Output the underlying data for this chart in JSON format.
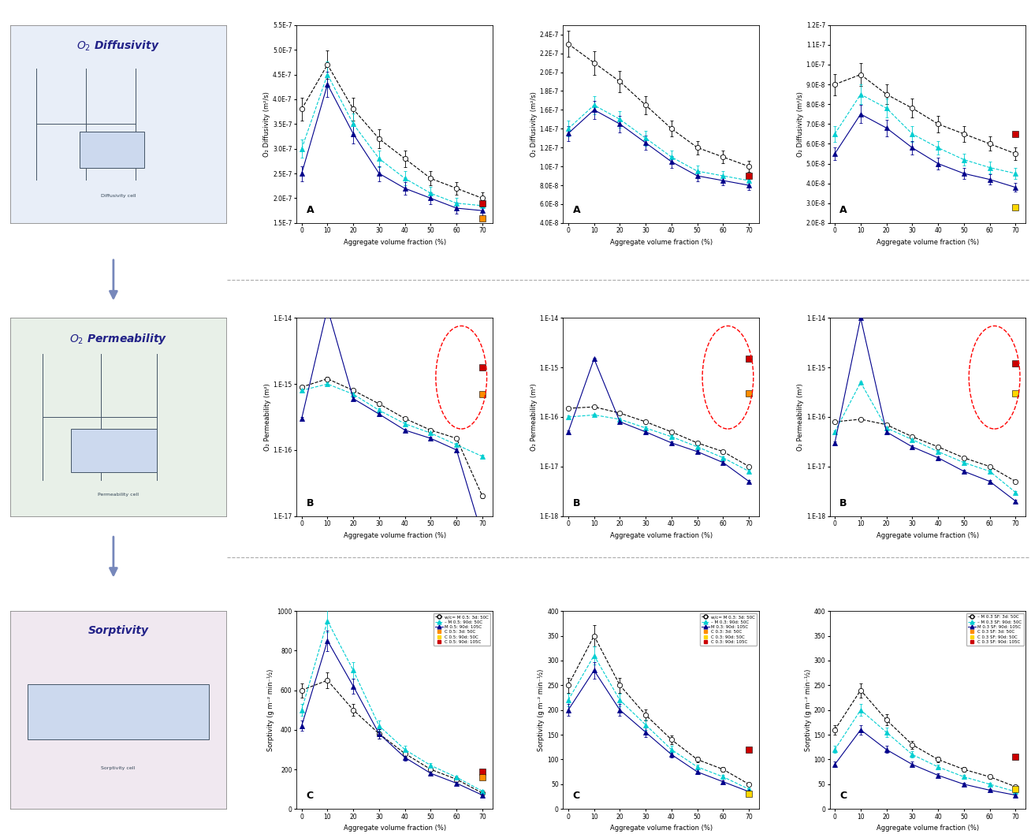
{
  "x_agg": [
    0,
    10,
    20,
    30,
    40,
    50,
    60,
    70
  ],
  "diff_col1": {
    "s1": [
      3.8e-07,
      4.7e-07,
      3.8e-07,
      3.2e-07,
      2.8e-07,
      2.4e-07,
      2.2e-07,
      2e-07
    ],
    "s2": [
      3e-07,
      4.5e-07,
      3.5e-07,
      2.8e-07,
      2.4e-07,
      2.1e-07,
      1.9e-07,
      1.85e-07
    ],
    "s3": [
      2.5e-07,
      4.3e-07,
      3.3e-07,
      2.5e-07,
      2.2e-07,
      2e-07,
      1.8e-07,
      1.75e-07
    ],
    "sq_red": 1.9e-07,
    "sq_orange": 1.6e-07,
    "sq_yellow": null,
    "ylabel": "O₂ Diffusivity (m²/s)",
    "ylim": [
      1.5e-07,
      5.5e-07
    ],
    "yticks": [
      1.5e-07,
      2e-07,
      2.5e-07,
      3e-07,
      3.5e-07,
      4e-07,
      4.5e-07,
      5e-07,
      5.5e-07
    ],
    "label": "A"
  },
  "diff_col2": {
    "s1": [
      2.3e-07,
      2.1e-07,
      1.9e-07,
      1.65e-07,
      1.4e-07,
      1.2e-07,
      1.1e-07,
      1e-07
    ],
    "s2": [
      1.4e-07,
      1.65e-07,
      1.5e-07,
      1.3e-07,
      1.1e-07,
      9.5e-08,
      9e-08,
      8.5e-08
    ],
    "s3": [
      1.35e-07,
      1.6e-07,
      1.45e-07,
      1.25e-07,
      1.05e-07,
      9e-08,
      8.5e-08,
      8e-08
    ],
    "sq_red": 9e-08,
    "sq_orange": null,
    "sq_yellow": null,
    "ylabel": "O₂ Diffusivity (m²/s)",
    "ylim": [
      4e-08,
      2.5e-07
    ],
    "yticks": [
      4e-08,
      6e-08,
      8e-08,
      1e-07,
      1.2e-07,
      1.4e-07,
      1.6e-07,
      1.8e-07,
      2e-07,
      2.2e-07,
      2.4e-07
    ],
    "label": "A"
  },
  "diff_col3": {
    "s1": [
      9e-08,
      9.5e-08,
      8.5e-08,
      7.8e-08,
      7e-08,
      6.5e-08,
      6e-08,
      5.5e-08
    ],
    "s2": [
      6.5e-08,
      8.5e-08,
      7.8e-08,
      6.5e-08,
      5.8e-08,
      5.2e-08,
      4.8e-08,
      4.5e-08
    ],
    "s3": [
      5.5e-08,
      7.5e-08,
      6.8e-08,
      5.8e-08,
      5e-08,
      4.5e-08,
      4.2e-08,
      3.8e-08
    ],
    "sq_red": 6.5e-08,
    "sq_orange": null,
    "sq_yellow": 2.8e-08,
    "ylabel": "O₂ Diffusivity (m²/s)",
    "ylim": [
      2e-08,
      1.2e-07
    ],
    "yticks": [
      2e-08,
      3e-08,
      4e-08,
      5e-08,
      6e-08,
      7e-08,
      8e-08,
      9e-08,
      1e-07,
      1.1e-07,
      1.2e-07
    ],
    "label": "A"
  },
  "perm_col1": {
    "s1": [
      9e-16,
      1.2e-15,
      8e-16,
      5e-16,
      3e-16,
      2e-16,
      1.5e-16,
      2e-17
    ],
    "s2": [
      8e-16,
      1e-15,
      7e-16,
      4e-16,
      2.5e-16,
      1.8e-16,
      1.2e-16,
      8e-17
    ],
    "s3": [
      3e-16,
      1.4e-14,
      6e-16,
      3.5e-16,
      2e-16,
      1.5e-16,
      1e-16,
      5e-18
    ],
    "sq_red": 1.8e-15,
    "sq_orange": 7e-16,
    "sq_yellow": null,
    "ylabel": "O₂ Permeability (m²)",
    "ylim": [
      1e-17,
      1e-14
    ],
    "label": "B"
  },
  "perm_col2": {
    "s1": [
      1.5e-16,
      1.6e-16,
      1.2e-16,
      8e-17,
      5e-17,
      3e-17,
      2e-17,
      1e-17
    ],
    "s2": [
      1e-16,
      1.1e-16,
      9e-17,
      6e-17,
      4e-17,
      2.5e-17,
      1.5e-17,
      8e-18
    ],
    "s3": [
      5e-17,
      1.5e-15,
      8e-17,
      5e-17,
      3e-17,
      2e-17,
      1.2e-17,
      5e-18
    ],
    "sq_red": 1.5e-15,
    "sq_orange": 3e-16,
    "sq_yellow": null,
    "ylabel": "O₂ Permeability (m²)",
    "ylim": [
      1e-18,
      1e-14
    ],
    "label": "B"
  },
  "perm_col3": {
    "s1": [
      8e-17,
      9e-17,
      7e-17,
      4e-17,
      2.5e-17,
      1.5e-17,
      1e-17,
      5e-18
    ],
    "s2": [
      5e-17,
      5e-16,
      6e-17,
      3.5e-17,
      2e-17,
      1.2e-17,
      8e-18,
      3e-18
    ],
    "s3": [
      3e-17,
      1e-14,
      5e-17,
      2.5e-17,
      1.5e-17,
      8e-18,
      5e-18,
      2e-18
    ],
    "sq_red": 1.2e-15,
    "sq_orange": null,
    "sq_yellow": 3e-16,
    "ylabel": "O₂ Permeability (m²)",
    "ylim": [
      1e-18,
      1e-14
    ],
    "label": "B"
  },
  "sorp_col1": {
    "s1": [
      600,
      650,
      500,
      380,
      280,
      200,
      150,
      80
    ],
    "s2": [
      500,
      950,
      700,
      420,
      300,
      220,
      160,
      90
    ],
    "s3": [
      420,
      850,
      620,
      380,
      260,
      180,
      130,
      70
    ],
    "sq_red": 190,
    "sq_orange": 160,
    "sq_yellow": null,
    "ylabel": "Sorptivity (g m⁻² min⁻½)",
    "ylim": [
      0,
      1000
    ],
    "label": "C",
    "legend": [
      "w/c= M 0.5: 3d: 50C",
      "– M 0.5: 90d: 50C",
      "M 0.5: 90d: 105C",
      "C 0.5: 3d: 50C",
      "C 0.5: 90d: 50C",
      "C 0.5: 90d: 105C"
    ]
  },
  "sorp_col2": {
    "s1": [
      250,
      350,
      250,
      190,
      140,
      100,
      80,
      50
    ],
    "s2": [
      220,
      310,
      220,
      170,
      120,
      85,
      65,
      40
    ],
    "s3": [
      200,
      280,
      200,
      155,
      110,
      75,
      55,
      35
    ],
    "sq_red": 120,
    "sq_orange": null,
    "sq_yellow": 30,
    "ylabel": "Sorptivity (g m⁻² min⁻½)",
    "ylim": [
      0,
      400
    ],
    "label": "C",
    "legend": [
      "w/c= M 0.3: 3d: 50C",
      "– M 0.3: 90d: 50C",
      "M 0.3: 90d: 105C",
      "C 0.3: 3d: 50C",
      "C 0.3: 90d: 50C",
      "C 0.3: 90d: 105C"
    ]
  },
  "sorp_col3": {
    "s1": [
      160,
      240,
      180,
      130,
      100,
      80,
      65,
      45
    ],
    "s2": [
      120,
      200,
      155,
      110,
      85,
      65,
      50,
      35
    ],
    "s3": [
      90,
      160,
      120,
      90,
      68,
      50,
      38,
      28
    ],
    "sq_red": 105,
    "sq_orange": null,
    "sq_yellow": 40,
    "ylabel": "Sorptivity (g m⁻² min⁻½)",
    "ylim": [
      0,
      400
    ],
    "label": "C",
    "legend": [
      "– M 0.3 SF: 3d: 50C",
      "– M 0.3 SF: 90d: 50C",
      "M 0.3 SF: 90d: 105C",
      "C 0.3 SF: 3d: 50C",
      "C 0.3 SF: 90d: 50C",
      "C 0.3 SF: 90d: 105C"
    ]
  },
  "xlabel": "Aggregate volume fraction (%)",
  "xticks": [
    0,
    10,
    20,
    30,
    40,
    50,
    60,
    70
  ],
  "C_black": "#000000",
  "C_teal": "#00ced1",
  "C_navyblue": "#00008b",
  "C_darkblue": "#1a1a8c",
  "C_red": "#cc0000",
  "C_orange": "#ff8c00",
  "C_yellow": "#ffd700"
}
